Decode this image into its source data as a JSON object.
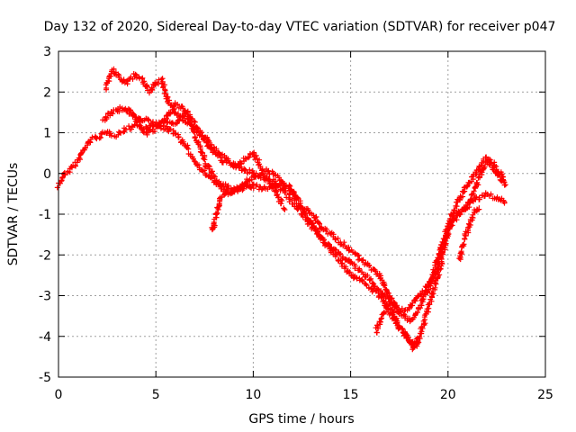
{
  "chart_data": {
    "type": "scatter",
    "title": "Day 132 of 2020, Sidereal Day-to-day VTEC variation (SDTVAR) for receiver p047",
    "xlabel": "GPS time / hours",
    "ylabel": "SDTVAR / TECUs",
    "xlim": [
      0,
      25
    ],
    "ylim": [
      -5,
      3
    ],
    "xticks": [
      "0",
      "5",
      "10",
      "15",
      "20",
      "25"
    ],
    "yticks": [
      "-5",
      "-4",
      "-3",
      "-2",
      "-1",
      "0",
      "1",
      "2",
      "3"
    ],
    "grid": true,
    "marker": "+",
    "series_color": "#ff0000",
    "series": [
      {
        "name": "track-1",
        "points": [
          [
            0.0,
            -0.3
          ],
          [
            0.3,
            0.0
          ],
          [
            0.6,
            0.1
          ],
          [
            1.0,
            0.3
          ],
          [
            1.3,
            0.6
          ],
          [
            1.6,
            0.8
          ],
          [
            2.0,
            0.9
          ],
          [
            2.5,
            1.0
          ],
          [
            3.0,
            0.95
          ],
          [
            3.5,
            1.1
          ],
          [
            4.0,
            1.2
          ],
          [
            4.5,
            1.1
          ],
          [
            5.0,
            1.2
          ],
          [
            5.5,
            1.1
          ],
          [
            6.0,
            1.0
          ],
          [
            6.5,
            0.7
          ],
          [
            7.0,
            0.3
          ],
          [
            7.5,
            0.0
          ],
          [
            8.0,
            -0.2
          ],
          [
            8.5,
            -0.3
          ],
          [
            9.0,
            -0.4
          ],
          [
            9.5,
            -0.3
          ],
          [
            10.0,
            -0.3
          ],
          [
            10.5,
            -0.4
          ],
          [
            11.0,
            -0.3
          ],
          [
            11.5,
            -0.3
          ],
          [
            12.0,
            -0.5
          ],
          [
            12.5,
            -0.9
          ],
          [
            13.0,
            -1.2
          ],
          [
            13.5,
            -1.6
          ],
          [
            14.0,
            -1.9
          ],
          [
            14.5,
            -2.2
          ],
          [
            15.0,
            -2.5
          ],
          [
            15.5,
            -2.6
          ],
          [
            16.0,
            -2.8
          ],
          [
            16.5,
            -3.0
          ],
          [
            17.0,
            -3.4
          ],
          [
            17.5,
            -3.8
          ],
          [
            18.0,
            -4.1
          ],
          [
            18.4,
            -4.2
          ],
          [
            18.8,
            -3.6
          ],
          [
            19.2,
            -3.0
          ],
          [
            19.6,
            -2.3
          ],
          [
            20.0,
            -1.4
          ],
          [
            20.4,
            -1.0
          ],
          [
            20.8,
            -0.9
          ],
          [
            21.2,
            -0.7
          ],
          [
            21.6,
            -0.6
          ],
          [
            22.0,
            -0.5
          ],
          [
            22.5,
            -0.6
          ],
          [
            23.0,
            -0.7
          ]
        ]
      },
      {
        "name": "track-2",
        "points": [
          [
            2.3,
            1.3
          ],
          [
            2.7,
            1.5
          ],
          [
            3.0,
            1.55
          ],
          [
            3.3,
            1.6
          ],
          [
            3.7,
            1.5
          ],
          [
            4.0,
            1.4
          ],
          [
            4.5,
            1.3
          ],
          [
            5.0,
            1.2
          ],
          [
            5.5,
            1.3
          ],
          [
            6.0,
            1.2
          ],
          [
            6.3,
            1.4
          ],
          [
            6.6,
            1.5
          ],
          [
            7.0,
            1.2
          ],
          [
            7.5,
            0.8
          ],
          [
            8.0,
            0.5
          ],
          [
            8.5,
            0.3
          ],
          [
            9.0,
            0.2
          ],
          [
            9.5,
            0.1
          ],
          [
            10.0,
            0.0
          ],
          [
            10.5,
            -0.1
          ],
          [
            11.0,
            -0.2
          ],
          [
            11.5,
            -0.4
          ],
          [
            12.0,
            -0.7
          ],
          [
            12.5,
            -1.0
          ],
          [
            13.0,
            -1.3
          ],
          [
            13.5,
            -1.6
          ],
          [
            14.0,
            -1.8
          ],
          [
            14.5,
            -2.0
          ],
          [
            15.0,
            -2.2
          ],
          [
            15.5,
            -2.4
          ],
          [
            16.0,
            -2.6
          ],
          [
            16.5,
            -2.9
          ],
          [
            17.0,
            -3.1
          ],
          [
            17.5,
            -3.4
          ],
          [
            18.0,
            -3.6
          ],
          [
            18.3,
            -3.5
          ],
          [
            18.7,
            -3.1
          ],
          [
            19.0,
            -2.8
          ],
          [
            19.4,
            -2.2
          ],
          [
            19.8,
            -1.6
          ],
          [
            20.2,
            -1.0
          ],
          [
            20.6,
            -0.6
          ],
          [
            21.0,
            -0.3
          ],
          [
            21.4,
            0.0
          ],
          [
            21.8,
            0.3
          ],
          [
            22.0,
            0.4
          ],
          [
            22.4,
            0.2
          ],
          [
            22.8,
            -0.1
          ],
          [
            23.0,
            -0.3
          ]
        ]
      },
      {
        "name": "track-3",
        "points": [
          [
            2.4,
            2.1
          ],
          [
            2.8,
            2.55
          ],
          [
            3.2,
            2.3
          ],
          [
            3.5,
            2.2
          ],
          [
            3.9,
            2.4
          ],
          [
            4.3,
            2.3
          ],
          [
            4.7,
            2.0
          ],
          [
            5.0,
            2.2
          ],
          [
            5.3,
            2.3
          ],
          [
            5.6,
            1.8
          ],
          [
            6.0,
            1.5
          ],
          [
            6.5,
            1.3
          ],
          [
            7.0,
            1.1
          ],
          [
            7.5,
            0.9
          ],
          [
            8.0,
            0.6
          ],
          [
            8.5,
            0.4
          ],
          [
            9.0,
            0.2
          ],
          [
            9.5,
            0.3
          ],
          [
            10.0,
            0.5
          ],
          [
            10.5,
            0.1
          ],
          [
            11.0,
            0.0
          ],
          [
            11.5,
            -0.2
          ],
          [
            12.0,
            -0.4
          ],
          [
            12.5,
            -0.8
          ],
          [
            13.0,
            -1.0
          ],
          [
            13.5,
            -1.3
          ],
          [
            14.0,
            -1.5
          ],
          [
            14.5,
            -1.7
          ],
          [
            15.0,
            -1.9
          ],
          [
            15.5,
            -2.1
          ],
          [
            16.0,
            -2.3
          ],
          [
            16.5,
            -2.5
          ],
          [
            17.0,
            -3.0
          ],
          [
            17.5,
            -3.4
          ],
          [
            18.0,
            -3.3
          ],
          [
            18.5,
            -3.0
          ],
          [
            18.9,
            -2.8
          ],
          [
            19.3,
            -2.5
          ],
          [
            19.7,
            -1.8
          ],
          [
            20.0,
            -1.4
          ],
          [
            20.4,
            -1.1
          ],
          [
            20.8,
            -0.9
          ],
          [
            21.2,
            -0.6
          ],
          [
            21.6,
            -0.1
          ],
          [
            22.0,
            0.3
          ],
          [
            22.4,
            0.1
          ],
          [
            22.8,
            -0.2
          ]
        ]
      },
      {
        "name": "track-4",
        "points": [
          [
            3.5,
            1.6
          ],
          [
            4.0,
            1.3
          ],
          [
            4.5,
            1.0
          ],
          [
            5.0,
            1.1
          ],
          [
            5.5,
            1.3
          ],
          [
            6.0,
            1.7
          ],
          [
            6.4,
            1.6
          ],
          [
            6.8,
            1.2
          ],
          [
            7.2,
            0.7
          ],
          [
            7.6,
            0.2
          ],
          [
            8.0,
            -0.1
          ],
          [
            8.4,
            -0.4
          ],
          [
            8.8,
            -0.5
          ],
          [
            9.2,
            -0.4
          ],
          [
            9.6,
            -0.2
          ],
          [
            10.0,
            -0.1
          ],
          [
            10.5,
            0.0
          ],
          [
            11.0,
            -0.3
          ],
          [
            11.3,
            -0.6
          ],
          [
            11.6,
            -0.9
          ]
        ]
      },
      {
        "name": "track-5",
        "points": [
          [
            7.9,
            -1.4
          ],
          [
            8.1,
            -1.0
          ],
          [
            8.3,
            -0.6
          ],
          [
            8.6,
            -0.5
          ],
          [
            9.0,
            -0.45
          ],
          [
            9.5,
            -0.35
          ],
          [
            10.0,
            -0.3
          ]
        ]
      },
      {
        "name": "track-6",
        "points": [
          [
            16.3,
            -3.9
          ],
          [
            16.6,
            -3.5
          ],
          [
            17.0,
            -3.2
          ],
          [
            17.4,
            -3.7
          ],
          [
            17.8,
            -3.9
          ],
          [
            18.2,
            -4.3
          ],
          [
            18.5,
            -4.0
          ]
        ]
      },
      {
        "name": "track-7",
        "points": [
          [
            20.6,
            -2.1
          ],
          [
            20.8,
            -1.7
          ],
          [
            21.0,
            -1.4
          ],
          [
            21.3,
            -1.0
          ],
          [
            21.6,
            -0.8
          ]
        ]
      }
    ]
  }
}
